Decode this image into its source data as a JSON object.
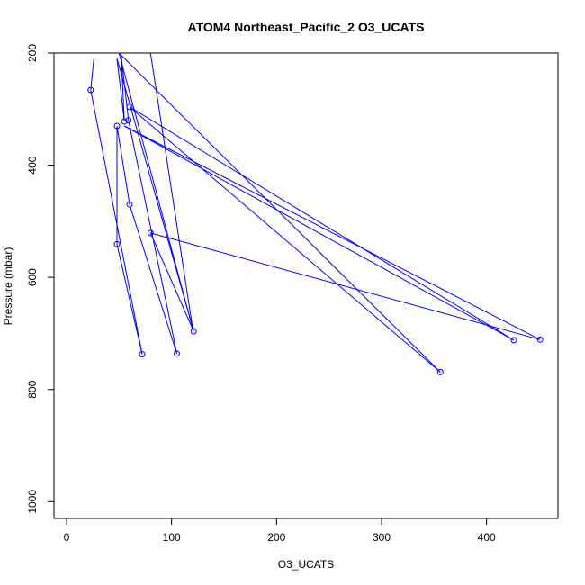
{
  "chart_data": {
    "type": "line",
    "title": "ATOM4 Northeast_Pacific_2 O3_UCATS",
    "xlabel": "O3_UCATS",
    "ylabel": "Pressure (mbar)",
    "xlim": [
      -12,
      468
    ],
    "ylim": [
      1030,
      200
    ],
    "y_reversed": true,
    "x_ticks": [
      0,
      100,
      200,
      300,
      400
    ],
    "y_ticks": [
      200,
      400,
      600,
      800,
      1000
    ],
    "grid": false,
    "series_color": "#0000ff",
    "series": [
      {
        "x": [
          26,
          23,
          72,
          48,
          48,
          60,
          105,
          59,
          52,
          55,
          48,
          121,
          80,
          451,
          55,
          426,
          60,
          356,
          50,
          120,
          80
        ],
        "y": [
          210,
          266,
          737,
          541,
          330,
          470,
          736,
          320,
          205,
          322,
          210,
          696,
          521,
          711,
          330,
          712,
          296,
          769,
          200,
          690,
          200
        ]
      }
    ],
    "point_display": [
      false,
      true,
      true,
      true,
      true,
      true,
      true,
      true,
      false,
      true,
      false,
      true,
      true,
      true,
      false,
      true,
      true,
      true,
      false,
      false,
      false
    ]
  }
}
